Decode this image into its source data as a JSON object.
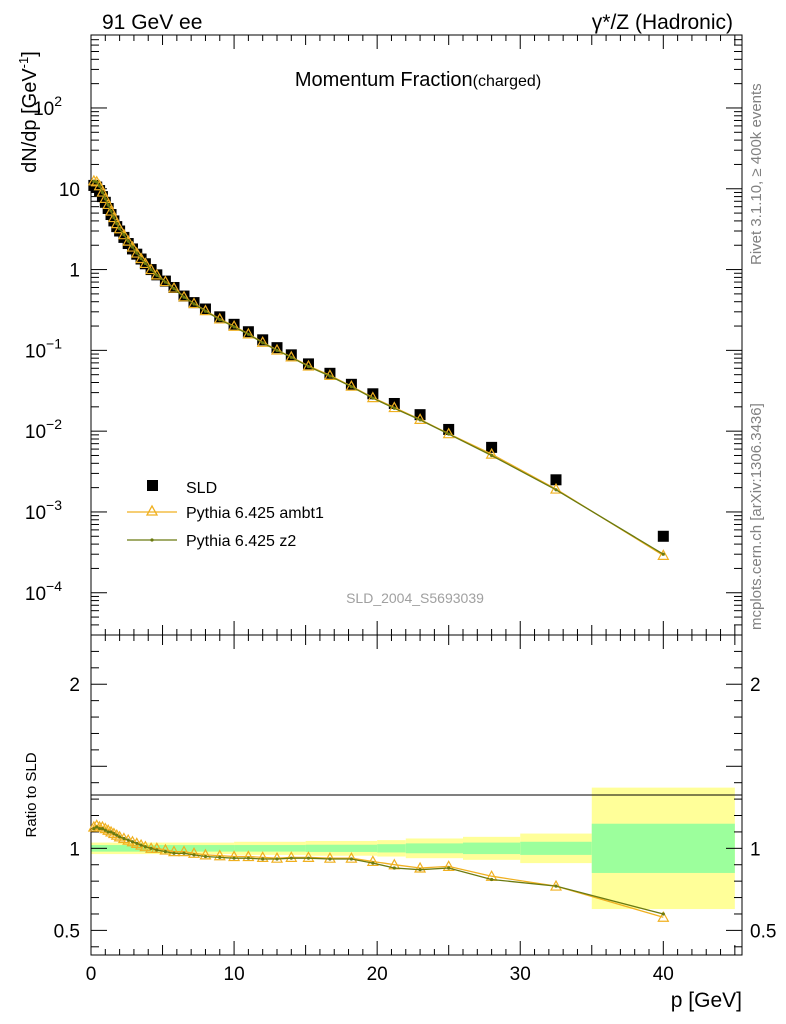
{
  "header": {
    "left": "91 GeV ee",
    "right": "γ*/Z (Hadronic)"
  },
  "side_labels": {
    "rivet": "Rivet 3.1.10, ≥ 400k events",
    "mcplots": "mcplots.cern.ch [arXiv:1306.3436]"
  },
  "analysis_id": "SLD_2004_S5693039",
  "chart_data": [
    {
      "type": "scatter",
      "title": "Momentum Fraction",
      "title_suffix": "(charged)",
      "xlabel": "",
      "ylabel": "dN/dp [GeV",
      "ylabel_sup": "-1",
      "ylabel_end": "]",
      "yscale": "log",
      "xlim": [
        0,
        45.5
      ],
      "ylim": [
        3e-05,
        800
      ],
      "ytick_labels": [
        {
          "value": 0.0001,
          "base": "10",
          "exp": "−4"
        },
        {
          "value": 0.001,
          "base": "10",
          "exp": "−3"
        },
        {
          "value": 0.01,
          "base": "10",
          "exp": "−2"
        },
        {
          "value": 0.1,
          "base": "10",
          "exp": "−1"
        },
        {
          "value": 1,
          "base": "1",
          "exp": ""
        },
        {
          "value": 10,
          "base": "10",
          "exp": ""
        },
        {
          "value": 100,
          "base": "10",
          "exp": "2"
        }
      ],
      "legend_position": "bottom-left",
      "x": [
        0.2,
        0.4,
        0.6,
        0.8,
        1.0,
        1.2,
        1.4,
        1.6,
        1.8,
        2.0,
        2.3,
        2.6,
        2.9,
        3.2,
        3.5,
        3.8,
        4.2,
        4.6,
        5.2,
        5.8,
        6.5,
        7.2,
        8.0,
        9.0,
        10.0,
        11.0,
        12.0,
        13.0,
        14.0,
        15.2,
        16.7,
        18.2,
        19.7,
        21.2,
        23.0,
        25.0,
        28.0,
        32.5,
        40.0
      ],
      "series": [
        {
          "name": "SLD",
          "values": [
            11.0,
            10.5,
            9.5,
            8.0,
            6.8,
            5.7,
            4.8,
            4.0,
            3.4,
            3.0,
            2.5,
            2.1,
            1.8,
            1.55,
            1.35,
            1.18,
            1.0,
            0.86,
            0.72,
            0.6,
            0.47,
            0.39,
            0.325,
            0.26,
            0.21,
            0.17,
            0.135,
            0.108,
            0.088,
            0.068,
            0.052,
            0.038,
            0.029,
            0.022,
            0.016,
            0.0105,
            0.0063,
            0.0025,
            0.0005
          ]
        },
        {
          "name": "Pythia 6.425 ambt1",
          "values": [
            12.5,
            12.2,
            10.9,
            9.1,
            7.6,
            6.4,
            5.3,
            4.4,
            3.7,
            3.2,
            2.7,
            2.25,
            1.9,
            1.6,
            1.37,
            1.19,
            1.0,
            0.86,
            0.71,
            0.59,
            0.46,
            0.38,
            0.31,
            0.245,
            0.199,
            0.16,
            0.126,
            0.101,
            0.083,
            0.064,
            0.049,
            0.036,
            0.026,
            0.0196,
            0.014,
            0.0093,
            0.0052,
            0.00192,
            0.00029
          ]
        },
        {
          "name": "Pythia 6.425 z2",
          "values": [
            12.4,
            12.1,
            10.8,
            9.0,
            7.5,
            6.3,
            5.3,
            4.4,
            3.7,
            3.2,
            2.7,
            2.25,
            1.9,
            1.6,
            1.37,
            1.19,
            1.0,
            0.85,
            0.7,
            0.58,
            0.455,
            0.375,
            0.305,
            0.24,
            0.195,
            0.158,
            0.124,
            0.1,
            0.082,
            0.063,
            0.048,
            0.0355,
            0.0256,
            0.0192,
            0.0138,
            0.0092,
            0.005,
            0.00188,
            0.0003
          ]
        }
      ]
    },
    {
      "type": "line",
      "xlabel": "p [GeV]",
      "ylabel": "Ratio to SLD",
      "xlim": [
        0,
        45.5
      ],
      "ylim": [
        0.35,
        2.3
      ],
      "xtick_labels": [
        0,
        10,
        20,
        30,
        40
      ],
      "ytick_labels": [
        0.5,
        1,
        2
      ],
      "reference_line": 1,
      "bands": [
        {
          "x0": 0,
          "x1": 5,
          "stat": 0.02,
          "tot": 0.035
        },
        {
          "x0": 5,
          "x1": 10,
          "stat": 0.02,
          "tot": 0.035
        },
        {
          "x0": 10,
          "x1": 15,
          "stat": 0.02,
          "tot": 0.04
        },
        {
          "x0": 15,
          "x1": 20,
          "stat": 0.022,
          "tot": 0.045
        },
        {
          "x0": 20,
          "x1": 22,
          "stat": 0.025,
          "tot": 0.05
        },
        {
          "x0": 22,
          "x1": 26,
          "stat": 0.03,
          "tot": 0.06
        },
        {
          "x0": 26,
          "x1": 30,
          "stat": 0.035,
          "tot": 0.07
        },
        {
          "x0": 30,
          "x1": 35,
          "stat": 0.04,
          "tot": 0.09
        },
        {
          "x0": 35,
          "x1": 45,
          "stat": 0.15,
          "tot": 0.37
        }
      ],
      "x": [
        0.2,
        0.4,
        0.6,
        0.8,
        1.0,
        1.2,
        1.4,
        1.6,
        1.8,
        2.0,
        2.3,
        2.6,
        2.9,
        3.2,
        3.5,
        3.8,
        4.2,
        4.6,
        5.2,
        5.8,
        6.5,
        7.2,
        8.0,
        9.0,
        10.0,
        11.0,
        12.0,
        13.0,
        14.0,
        15.2,
        16.7,
        18.2,
        19.7,
        21.2,
        23.0,
        25.0,
        28.0,
        32.5,
        40.0
      ],
      "series": [
        {
          "name": "Pythia 6.425 ambt1",
          "values": [
            1.13,
            1.14,
            1.13,
            1.13,
            1.12,
            1.11,
            1.1,
            1.09,
            1.08,
            1.07,
            1.06,
            1.05,
            1.04,
            1.03,
            1.02,
            1.01,
            1.0,
            1.0,
            0.99,
            0.98,
            0.98,
            0.97,
            0.96,
            0.955,
            0.95,
            0.95,
            0.945,
            0.94,
            0.945,
            0.945,
            0.94,
            0.94,
            0.92,
            0.9,
            0.88,
            0.89,
            0.83,
            0.77,
            0.58
          ]
        },
        {
          "name": "Pythia 6.425 z2",
          "values": [
            1.12,
            1.13,
            1.12,
            1.12,
            1.11,
            1.1,
            1.1,
            1.09,
            1.08,
            1.07,
            1.06,
            1.05,
            1.04,
            1.03,
            1.02,
            1.01,
            1.0,
            0.99,
            0.98,
            0.97,
            0.97,
            0.96,
            0.95,
            0.945,
            0.94,
            0.94,
            0.935,
            0.935,
            0.94,
            0.94,
            0.935,
            0.935,
            0.91,
            0.88,
            0.87,
            0.88,
            0.81,
            0.77,
            0.6
          ]
        }
      ]
    }
  ],
  "colors": {
    "sld": "#000000",
    "ambt1": "#f0b020",
    "z2": "#6b7a10",
    "stat_band": "#9cff9c",
    "tot_band": "#ffff99",
    "side_text": "#808080",
    "analysis_text": "#a0a0a0"
  }
}
